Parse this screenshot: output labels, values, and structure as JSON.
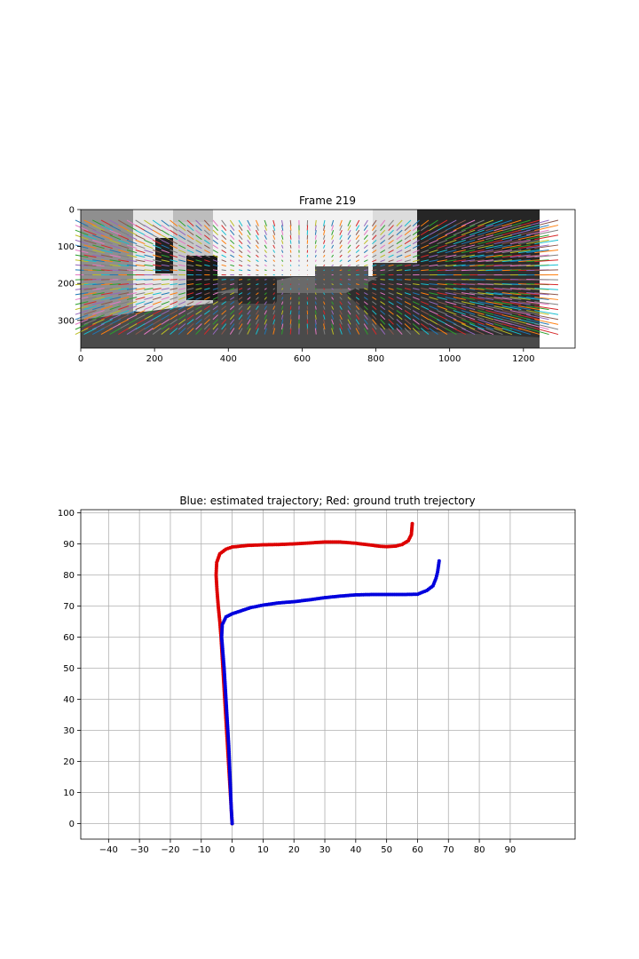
{
  "chart_data": [
    {
      "type": "image",
      "title": "Frame 219",
      "xlim": [
        0,
        1340
      ],
      "ylim": [
        375,
        0
      ],
      "image_extent": [
        0,
        1242,
        375,
        0
      ],
      "xticks": [
        0,
        200,
        400,
        600,
        800,
        1000,
        1200
      ],
      "yticks": [
        0,
        100,
        200,
        300
      ],
      "flow_grid": {
        "x_start": 20,
        "x_end": 1240,
        "x_step": 22,
        "y_start": 45,
        "y_end": 330,
        "y_step": 12
      },
      "colors": [
        "#1f77b4",
        "#ff7f0e",
        "#2ca02c",
        "#d62728",
        "#9467bd",
        "#8c564b",
        "#e377c2",
        "#7f7f7f",
        "#bcbd22",
        "#17becf"
      ]
    },
    {
      "type": "scatter",
      "title": "Blue: estimated trajectory; Red: ground truth trejectory",
      "xlim": [
        -49,
        111
      ],
      "ylim": [
        -5,
        101
      ],
      "xticks": [
        -40,
        -30,
        -20,
        -10,
        0,
        10,
        20,
        30,
        40,
        50,
        60,
        70,
        80,
        90
      ],
      "yticks": [
        0,
        10,
        20,
        30,
        40,
        50,
        60,
        70,
        80,
        90,
        100
      ],
      "grid": true,
      "series": [
        {
          "color": "#dd0000",
          "points": [
            [
              0,
              0
            ],
            [
              -0.3,
              5
            ],
            [
              -0.6,
              10
            ],
            [
              -0.9,
              15
            ],
            [
              -1.2,
              20
            ],
            [
              -1.5,
              25
            ],
            [
              -1.8,
              30
            ],
            [
              -2.1,
              35
            ],
            [
              -2.4,
              40
            ],
            [
              -2.7,
              45
            ],
            [
              -3.0,
              50
            ],
            [
              -3.3,
              55
            ],
            [
              -3.6,
              60
            ],
            [
              -4.0,
              65
            ],
            [
              -4.5,
              70
            ],
            [
              -4.9,
              75
            ],
            [
              -5.2,
              80
            ],
            [
              -5.0,
              84
            ],
            [
              -4.0,
              86.8
            ],
            [
              -2.0,
              88.3
            ],
            [
              0,
              89
            ],
            [
              5,
              89.5
            ],
            [
              10,
              89.7
            ],
            [
              15,
              89.8
            ],
            [
              20,
              90
            ],
            [
              25,
              90.3
            ],
            [
              30,
              90.6
            ],
            [
              35,
              90.6
            ],
            [
              40,
              90.2
            ],
            [
              45,
              89.6
            ],
            [
              48,
              89.2
            ],
            [
              50,
              89.1
            ],
            [
              53,
              89.3
            ],
            [
              55,
              89.8
            ],
            [
              57,
              91
            ],
            [
              58,
              93
            ],
            [
              58.3,
              96.5
            ]
          ]
        },
        {
          "color": "#0000dd",
          "points": [
            [
              0,
              0
            ],
            [
              -0.3,
              5
            ],
            [
              -0.5,
              10
            ],
            [
              -0.7,
              15
            ],
            [
              -0.9,
              20
            ],
            [
              -1.1,
              25
            ],
            [
              -1.4,
              30
            ],
            [
              -1.7,
              35
            ],
            [
              -2.0,
              40
            ],
            [
              -2.3,
              45
            ],
            [
              -2.6,
              50
            ],
            [
              -3.0,
              55
            ],
            [
              -3.4,
              60
            ],
            [
              -3.2,
              64
            ],
            [
              -2.0,
              66.5
            ],
            [
              0,
              67.5
            ],
            [
              3,
              68.5
            ],
            [
              6,
              69.5
            ],
            [
              10,
              70.3
            ],
            [
              15,
              71
            ],
            [
              20,
              71.4
            ],
            [
              25,
              72
            ],
            [
              30,
              72.7
            ],
            [
              35,
              73.2
            ],
            [
              40,
              73.6
            ],
            [
              45,
              73.7
            ],
            [
              50,
              73.7
            ],
            [
              55,
              73.7
            ],
            [
              60,
              73.8
            ],
            [
              63,
              75
            ],
            [
              65,
              76.5
            ],
            [
              66,
              79
            ],
            [
              66.5,
              81
            ],
            [
              67,
              84.5
            ]
          ]
        }
      ]
    }
  ]
}
